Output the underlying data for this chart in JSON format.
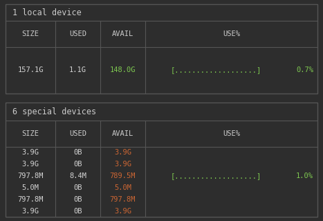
{
  "bg_color": "#2d2d2d",
  "border_color": "#555555",
  "header_text_color": "#cccccc",
  "white_text_color": "#d4d4d4",
  "green_text_color": "#7ec850",
  "orange_text_color": "#cc6633",
  "table1_title": "1 local device",
  "table1_headers": [
    "SIZE",
    "USED",
    "AVAIL",
    "USE%"
  ],
  "table1_row": [
    "157.1G",
    "1.1G",
    "148.0G",
    "[...................]",
    "0.7%"
  ],
  "table1_avail_color": "#7ec850",
  "table1_bar_color": "#7ec850",
  "table1_pct_color": "#7ec850",
  "table2_title": "6 special devices",
  "table2_headers": [
    "SIZE",
    "USED",
    "AVAIL",
    "USE%"
  ],
  "table2_rows": [
    [
      "3.9G",
      "0B",
      "3.9G",
      "",
      ""
    ],
    [
      "3.9G",
      "0B",
      "3.9G",
      "",
      ""
    ],
    [
      "797.8M",
      "8.4M",
      "789.5M",
      "[...................]",
      "1.0%"
    ],
    [
      "5.0M",
      "0B",
      "5.0M",
      "",
      ""
    ],
    [
      "797.8M",
      "0B",
      "797.8M",
      "",
      ""
    ],
    [
      "3.9G",
      "0B",
      "3.9G",
      "",
      ""
    ]
  ],
  "table2_avail_colors": [
    "#cc6633",
    "#cc6633",
    "#cc6633",
    "#cc6633",
    "#cc6633",
    "#cc6633"
  ],
  "table2_bar_color": "#7ec850",
  "table2_pct_color": "#7ec850",
  "font_size": 7.5,
  "title_font_size": 8.5
}
